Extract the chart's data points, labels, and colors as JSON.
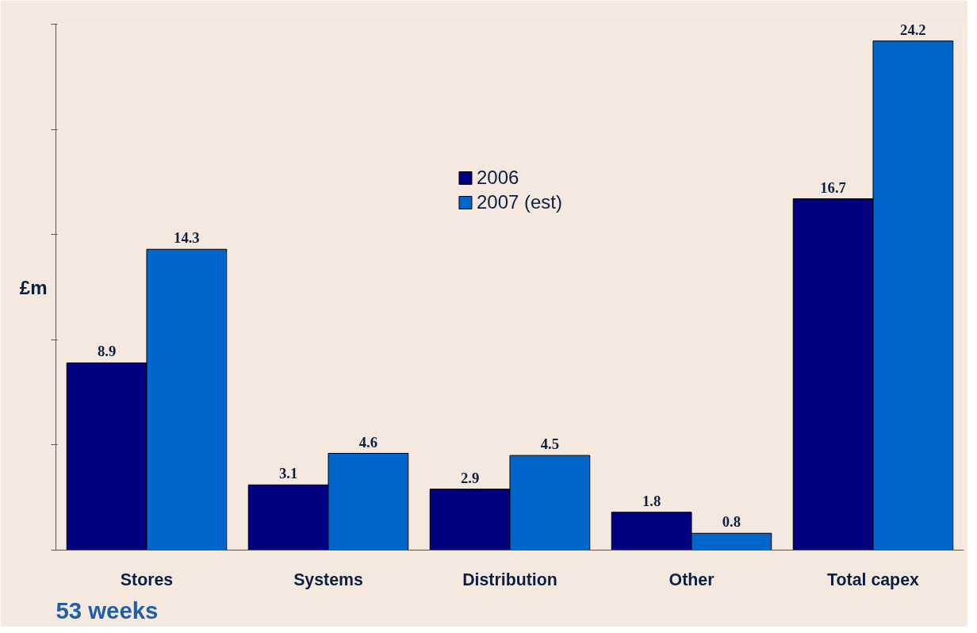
{
  "chart_data": {
    "type": "bar",
    "ylabel": "£m",
    "categories": [
      "Stores",
      "Systems",
      "Distribution",
      "Other",
      "Total capex"
    ],
    "series": [
      {
        "name": "2006",
        "color": "#000080",
        "values": [
          8.9,
          3.1,
          2.9,
          1.8,
          16.7
        ]
      },
      {
        "name": "2007 (est)",
        "color": "#0066cc",
        "values": [
          14.3,
          4.6,
          4.5,
          0.8,
          24.2
        ]
      }
    ],
    "ylim": [
      0,
      25
    ],
    "yticks": [
      {
        "value": 0,
        "label": null
      },
      {
        "value": 5,
        "label": null
      },
      {
        "value": 10,
        "label": null
      },
      {
        "value": 15,
        "label": null
      },
      {
        "value": 20,
        "label": null
      },
      {
        "value": 25,
        "label": null
      }
    ],
    "tick_labels": "x",
    "data_labels": true,
    "legend": "top",
    "grid": false,
    "annotations": [
      "53 weeks"
    ]
  }
}
